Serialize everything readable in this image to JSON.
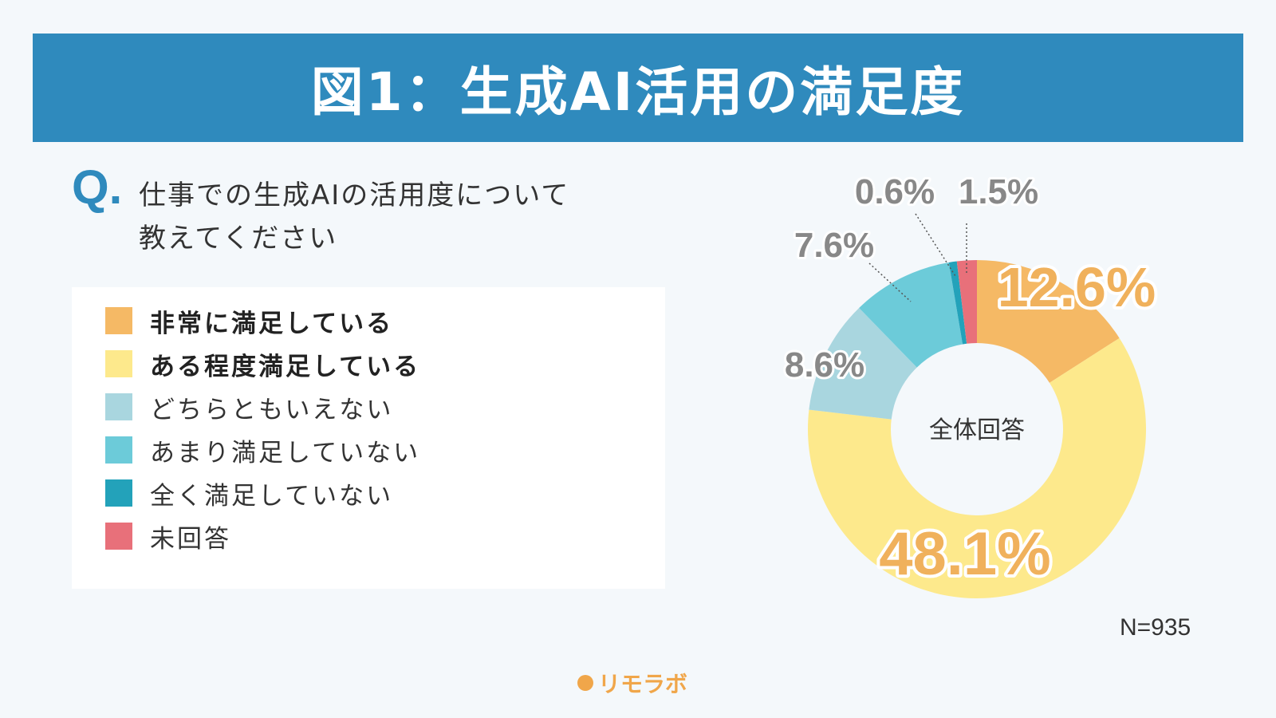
{
  "header": {
    "title": "図1：生成AI活用の満足度"
  },
  "question": {
    "mark": "Q.",
    "line1": "仕事での生成AIの活用度について",
    "line2": "教えてください"
  },
  "legend": [
    {
      "label": "非常に満足している",
      "color": "#f5b965",
      "bold": true
    },
    {
      "label": "ある程度満足している",
      "color": "#fde98c",
      "bold": true
    },
    {
      "label": "どちらともいえない",
      "color": "#a9d6df",
      "bold": false
    },
    {
      "label": "あまり満足していない",
      "color": "#6ccbd9",
      "bold": false
    },
    {
      "label": "全く満足していない",
      "color": "#23a2ba",
      "bold": false
    },
    {
      "label": "未回答",
      "color": "#e8707a",
      "bold": false
    }
  ],
  "chart_data": {
    "type": "pie",
    "style": "donut",
    "center_label": "全体回答",
    "categories": [
      "非常に満足している",
      "ある程度満足している",
      "どちらともいえない",
      "あまり満足していない",
      "全く満足していない",
      "未回答"
    ],
    "values": [
      12.6,
      48.1,
      8.6,
      7.6,
      0.6,
      1.5
    ],
    "data_labels": [
      "12.6%",
      "48.1%",
      "8.6%",
      "7.6%",
      "0.6%",
      "1.5%"
    ],
    "colors": [
      "#f5b965",
      "#fde98c",
      "#a9d6df",
      "#6ccbd9",
      "#23a2ba",
      "#e8707a"
    ],
    "label_colors": [
      "#f0b15c",
      "#f0b15c",
      "#888888",
      "#888888",
      "#888888",
      "#888888"
    ],
    "legend_position": "left"
  },
  "footer": {
    "sample_size": "N=935",
    "brand": "リモラボ"
  }
}
